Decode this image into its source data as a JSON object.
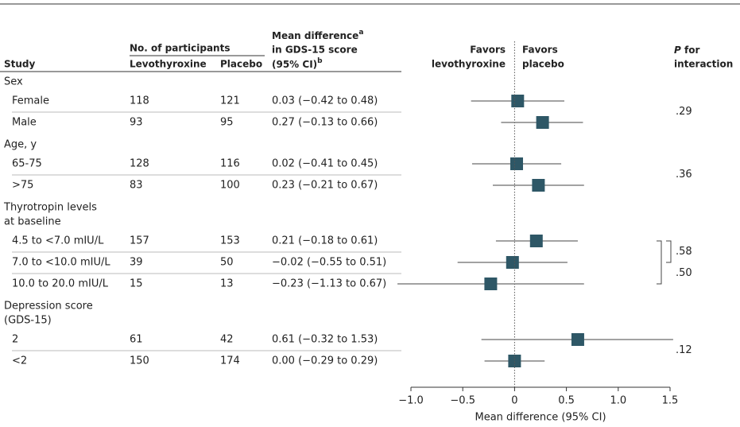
{
  "chart_data": {
    "type": "forest",
    "headers": {
      "study": "Study",
      "participants": "No. of participants",
      "levo": "Levothyroxine",
      "placebo": "Placebo",
      "mean_diff": [
        "Mean difference",
        "in GDS-15 score",
        "(95% CI)"
      ],
      "mean_diff_notes": [
        "a",
        "b"
      ],
      "favors_left": [
        "Favors",
        "levothyroxine"
      ],
      "favors_right": [
        "Favors",
        "placebo"
      ],
      "p_interaction": [
        "P",
        "for",
        "interaction"
      ]
    },
    "groups": [
      {
        "label": [
          "Sex"
        ],
        "p_values": [
          ".29"
        ],
        "rows": [
          {
            "label": "Female",
            "levo": 118,
            "placebo": 121,
            "mean": 0.03,
            "lower": -0.42,
            "upper": 0.48,
            "ci_label": "0.03 (−0.42 to 0.48)"
          },
          {
            "label": "Male",
            "levo": 93,
            "placebo": 95,
            "mean": 0.27,
            "lower": -0.13,
            "upper": 0.66,
            "ci_label": "0.27 (−0.13 to 0.66)"
          }
        ]
      },
      {
        "label": [
          "Age, y"
        ],
        "p_values": [
          ".36"
        ],
        "rows": [
          {
            "label": "65-75",
            "levo": 128,
            "placebo": 116,
            "mean": 0.02,
            "lower": -0.41,
            "upper": 0.45,
            "ci_label": "0.02 (−0.41 to 0.45)"
          },
          {
            "label": ">75",
            "levo": 83,
            "placebo": 100,
            "mean": 0.23,
            "lower": -0.21,
            "upper": 0.67,
            "ci_label": "0.23 (−0.21 to 0.67)"
          }
        ]
      },
      {
        "label": [
          "Thyrotropin levels",
          "at baseline"
        ],
        "p_values": [
          ".58",
          ".50"
        ],
        "rows": [
          {
            "label": "4.5 to <7.0 mIU/L",
            "levo": 157,
            "placebo": 153,
            "mean": 0.21,
            "lower": -0.18,
            "upper": 0.61,
            "ci_label": "0.21 (−0.18 to 0.61)"
          },
          {
            "label": "7.0 to <10.0 mIU/L",
            "levo": 39,
            "placebo": 50,
            "mean": -0.02,
            "lower": -0.55,
            "upper": 0.51,
            "ci_label": "−0.02 (−0.55 to 0.51)"
          },
          {
            "label": "10.0 to 20.0 mIU/L",
            "levo": 15,
            "placebo": 13,
            "mean": -0.23,
            "lower": -1.13,
            "upper": 0.67,
            "ci_label": "−0.23 (−1.13 to 0.67)"
          }
        ]
      },
      {
        "label": [
          "Depression score",
          "(GDS-15)"
        ],
        "p_values": [
          ".12"
        ],
        "rows": [
          {
            "label": "2",
            "levo": 61,
            "placebo": 42,
            "mean": 0.61,
            "lower": -0.32,
            "upper": 1.53,
            "ci_label": "0.61 (−0.32 to 1.53)"
          },
          {
            "label": "<2",
            "levo": 150,
            "placebo": 174,
            "mean": 0.0,
            "lower": -0.29,
            "upper": 0.29,
            "ci_label": "0.00 (−0.29 to 0.29)"
          }
        ]
      }
    ],
    "xlim": [
      -1.0,
      1.5
    ],
    "xticks": [
      {
        "value": -1.0,
        "label": "−1.0"
      },
      {
        "value": -0.5,
        "label": "−0.5"
      },
      0,
      0.5,
      {
        "value": 1.0,
        "label": "1.0"
      },
      1.5
    ],
    "xlabel": "Mean difference (95% CI)",
    "marker_color": "#2e5766"
  }
}
